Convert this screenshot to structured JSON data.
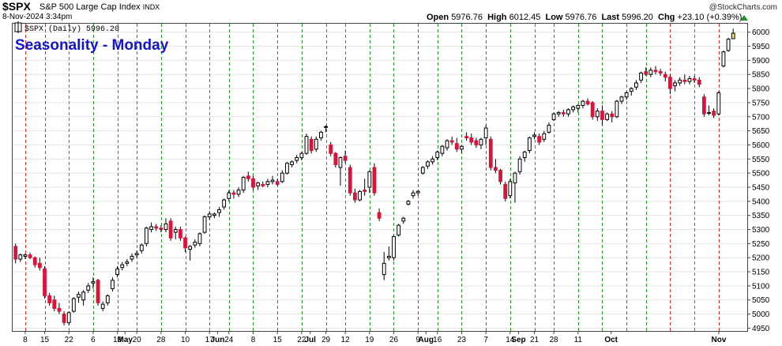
{
  "header": {
    "ticker": "$SPX",
    "name": "S&P 500 Large Cap Index",
    "exchange": "INDX",
    "date": "8-Nov-2024 3:34pm",
    "open_label": "Open",
    "open": "5976.76",
    "high_label": "High",
    "high": "6012.45",
    "low_label": "Low",
    "low": "5976.76",
    "last_label": "Last",
    "last": "5996.20",
    "chg_label": "Chg",
    "chg": "+23.10 (+0.39%)",
    "credit": "@StockCharts.com"
  },
  "legend": {
    "text": "$SPX (Daily) 5996.20"
  },
  "chart_data": {
    "type": "candlestick",
    "title": "Seasonality - Monday",
    "ylim": [
      4940,
      6030
    ],
    "y_ticks": [
      4950,
      5000,
      5050,
      5100,
      5150,
      5200,
      5250,
      5300,
      5350,
      5400,
      5450,
      5500,
      5550,
      5600,
      5650,
      5700,
      5750,
      5800,
      5850,
      5900,
      5950,
      6000
    ],
    "x_labels": [
      "8",
      "15",
      "22",
      "May",
      "6",
      "13",
      "20",
      "28",
      "Jun",
      "10",
      "17",
      "24",
      "Jul",
      "8",
      "15",
      "22",
      "29",
      "Aug",
      "12",
      "19",
      "26",
      "Sep",
      "9",
      "16",
      "23",
      "Oct",
      "7",
      "14",
      "21",
      "28",
      "Nov",
      "11"
    ],
    "x_label_bold": [
      "May",
      "Jun",
      "Jul",
      "Aug",
      "Sep",
      "Oct",
      "Nov"
    ],
    "grid": true,
    "vertical_lines": "Mondays; red = Monday closed down, green = Monday closed up",
    "colors": {
      "up": "#ffffff",
      "down": "#d6143c",
      "outline": "#000000",
      "red_line": "#d23030",
      "green_line": "#2a9a2a",
      "title": "#1515c8"
    },
    "monday_lines": [
      {
        "date": "Apr 8",
        "color": "red"
      },
      {
        "date": "Apr 15",
        "color": "red"
      },
      {
        "date": "Apr 22",
        "color": "green"
      },
      {
        "date": "Apr 29",
        "color": "green"
      },
      {
        "date": "May 6",
        "color": "green"
      },
      {
        "date": "May 13",
        "color": "red"
      },
      {
        "date": "May 20",
        "color": "green"
      },
      {
        "date": "May 27",
        "color": "green"
      },
      {
        "date": "Jun 3",
        "color": "green"
      },
      {
        "date": "Jun 10",
        "color": "green"
      },
      {
        "date": "Jun 17",
        "color": "green"
      },
      {
        "date": "Jun 24",
        "color": "red"
      },
      {
        "date": "Jul 1",
        "color": "green"
      },
      {
        "date": "Jul 8",
        "color": "green"
      },
      {
        "date": "Jul 15",
        "color": "green"
      },
      {
        "date": "Jul 22",
        "color": "green"
      },
      {
        "date": "Jul 29",
        "color": "green"
      },
      {
        "date": "Aug 5",
        "color": "red"
      },
      {
        "date": "Aug 12",
        "color": "green"
      },
      {
        "date": "Aug 19",
        "color": "green"
      },
      {
        "date": "Aug 26",
        "color": "red"
      },
      {
        "date": "Sep 2",
        "color": "green"
      },
      {
        "date": "Sep 9",
        "color": "green"
      },
      {
        "date": "Sep 16",
        "color": "green"
      },
      {
        "date": "Sep 23",
        "color": "green"
      },
      {
        "date": "Sep 30",
        "color": "green"
      },
      {
        "date": "Oct 7",
        "color": "red"
      },
      {
        "date": "Oct 14",
        "color": "green"
      },
      {
        "date": "Oct 21",
        "color": "red"
      },
      {
        "date": "Oct 28",
        "color": "green"
      },
      {
        "date": "Nov 4",
        "color": "red"
      }
    ],
    "candles": [
      {
        "o": 5240,
        "h": 5250,
        "l": 5180,
        "c": 5195
      },
      {
        "o": 5195,
        "h": 5215,
        "l": 5185,
        "c": 5210
      },
      {
        "o": 5205,
        "h": 5215,
        "l": 5195,
        "c": 5210
      },
      {
        "o": 5210,
        "h": 5218,
        "l": 5195,
        "c": 5200
      },
      {
        "o": 5200,
        "h": 5205,
        "l": 5165,
        "c": 5175
      },
      {
        "o": 5180,
        "h": 5200,
        "l": 5155,
        "c": 5165
      },
      {
        "o": 5160,
        "h": 5170,
        "l": 5055,
        "c": 5065
      },
      {
        "o": 5065,
        "h": 5075,
        "l": 5030,
        "c": 5040
      },
      {
        "o": 5050,
        "h": 5065,
        "l": 5010,
        "c": 5020
      },
      {
        "o": 5020,
        "h": 5040,
        "l": 5000,
        "c": 5010
      },
      {
        "o": 5000,
        "h": 5010,
        "l": 4960,
        "c": 4970
      },
      {
        "o": 4970,
        "h": 5010,
        "l": 4960,
        "c": 5005
      },
      {
        "o": 5010,
        "h": 5060,
        "l": 5005,
        "c": 5055
      },
      {
        "o": 5060,
        "h": 5080,
        "l": 5040,
        "c": 5070
      },
      {
        "o": 5050,
        "h": 5085,
        "l": 5030,
        "c": 5078
      },
      {
        "o": 5085,
        "h": 5110,
        "l": 5075,
        "c": 5100
      },
      {
        "o": 5110,
        "h": 5130,
        "l": 5090,
        "c": 5115
      },
      {
        "o": 5120,
        "h": 5125,
        "l": 5030,
        "c": 5040
      },
      {
        "o": 5020,
        "h": 5045,
        "l": 5010,
        "c": 5035
      },
      {
        "o": 5040,
        "h": 5070,
        "l": 5030,
        "c": 5065
      },
      {
        "o": 5090,
        "h": 5130,
        "l": 5080,
        "c": 5120
      },
      {
        "o": 5140,
        "h": 5170,
        "l": 5130,
        "c": 5160
      },
      {
        "o": 5165,
        "h": 5185,
        "l": 5155,
        "c": 5175
      },
      {
        "o": 5180,
        "h": 5195,
        "l": 5170,
        "c": 5185
      },
      {
        "o": 5195,
        "h": 5215,
        "l": 5185,
        "c": 5205
      },
      {
        "o": 5210,
        "h": 5225,
        "l": 5200,
        "c": 5215
      },
      {
        "o": 5225,
        "h": 5250,
        "l": 5215,
        "c": 5245
      },
      {
        "o": 5250,
        "h": 5310,
        "l": 5240,
        "c": 5305
      },
      {
        "o": 5300,
        "h": 5325,
        "l": 5290,
        "c": 5310
      },
      {
        "o": 5310,
        "h": 5320,
        "l": 5295,
        "c": 5305
      },
      {
        "o": 5305,
        "h": 5315,
        "l": 5290,
        "c": 5300
      },
      {
        "o": 5300,
        "h": 5340,
        "l": 5290,
        "c": 5320
      },
      {
        "o": 5330,
        "h": 5340,
        "l": 5260,
        "c": 5270
      },
      {
        "o": 5290,
        "h": 5310,
        "l": 5265,
        "c": 5300
      },
      {
        "o": 5300,
        "h": 5310,
        "l": 5260,
        "c": 5270
      },
      {
        "o": 5270,
        "h": 5275,
        "l": 5220,
        "c": 5235
      },
      {
        "o": 5230,
        "h": 5245,
        "l": 5190,
        "c": 5240
      },
      {
        "o": 5245,
        "h": 5265,
        "l": 5235,
        "c": 5255
      },
      {
        "o": 5250,
        "h": 5290,
        "l": 5240,
        "c": 5285
      },
      {
        "o": 5290,
        "h": 5350,
        "l": 5285,
        "c": 5345
      },
      {
        "o": 5345,
        "h": 5365,
        "l": 5335,
        "c": 5355
      },
      {
        "o": 5350,
        "h": 5360,
        "l": 5340,
        "c": 5355
      },
      {
        "o": 5360,
        "h": 5380,
        "l": 5345,
        "c": 5370
      },
      {
        "o": 5380,
        "h": 5410,
        "l": 5370,
        "c": 5405
      },
      {
        "o": 5410,
        "h": 5440,
        "l": 5400,
        "c": 5430
      },
      {
        "o": 5430,
        "h": 5440,
        "l": 5410,
        "c": 5425
      },
      {
        "o": 5425,
        "h": 5450,
        "l": 5415,
        "c": 5440
      },
      {
        "o": 5440,
        "h": 5490,
        "l": 5430,
        "c": 5485
      },
      {
        "o": 5490,
        "h": 5505,
        "l": 5470,
        "c": 5480
      },
      {
        "o": 5480,
        "h": 5490,
        "l": 5440,
        "c": 5450
      },
      {
        "o": 5455,
        "h": 5470,
        "l": 5440,
        "c": 5465
      },
      {
        "o": 5460,
        "h": 5470,
        "l": 5450,
        "c": 5455
      },
      {
        "o": 5460,
        "h": 5480,
        "l": 5450,
        "c": 5470
      },
      {
        "o": 5470,
        "h": 5490,
        "l": 5460,
        "c": 5475
      },
      {
        "o": 5470,
        "h": 5480,
        "l": 5455,
        "c": 5460
      },
      {
        "o": 5470,
        "h": 5510,
        "l": 5465,
        "c": 5500
      },
      {
        "o": 5500,
        "h": 5540,
        "l": 5495,
        "c": 5535
      },
      {
        "o": 5530,
        "h": 5545,
        "l": 5520,
        "c": 5540
      },
      {
        "o": 5545,
        "h": 5565,
        "l": 5535,
        "c": 5555
      },
      {
        "o": 5555,
        "h": 5575,
        "l": 5545,
        "c": 5570
      },
      {
        "o": 5570,
        "h": 5640,
        "l": 5565,
        "c": 5630
      },
      {
        "o": 5620,
        "h": 5630,
        "l": 5570,
        "c": 5580
      },
      {
        "o": 5585,
        "h": 5630,
        "l": 5575,
        "c": 5620
      },
      {
        "o": 5625,
        "h": 5650,
        "l": 5615,
        "c": 5645
      },
      {
        "o": 5665,
        "h": 5670,
        "l": 5645,
        "c": 5665
      },
      {
        "o": 5600,
        "h": 5610,
        "l": 5560,
        "c": 5570
      },
      {
        "o": 5570,
        "h": 5575,
        "l": 5520,
        "c": 5530
      },
      {
        "o": 5520,
        "h": 5560,
        "l": 5455,
        "c": 5555
      },
      {
        "o": 5560,
        "h": 5580,
        "l": 5535,
        "c": 5545
      },
      {
        "o": 5520,
        "h": 5530,
        "l": 5420,
        "c": 5430
      },
      {
        "o": 5430,
        "h": 5445,
        "l": 5395,
        "c": 5405
      },
      {
        "o": 5405,
        "h": 5440,
        "l": 5400,
        "c": 5435
      },
      {
        "o": 5440,
        "h": 5480,
        "l": 5420,
        "c": 5435
      },
      {
        "o": 5450,
        "h": 5510,
        "l": 5430,
        "c": 5505
      },
      {
        "o": 5520,
        "h": 5535,
        "l": 5420,
        "c": 5430
      },
      {
        "o": 5360,
        "h": 5375,
        "l": 5330,
        "c": 5340
      },
      {
        "o": 5140,
        "h": 5220,
        "l": 5120,
        "c": 5180
      },
      {
        "o": 5200,
        "h": 5240,
        "l": 5190,
        "c": 5205
      },
      {
        "o": 5200,
        "h": 5280,
        "l": 5190,
        "c": 5275
      },
      {
        "o": 5280,
        "h": 5320,
        "l": 5275,
        "c": 5315
      },
      {
        "o": 5330,
        "h": 5345,
        "l": 5320,
        "c": 5340
      },
      {
        "o": 5390,
        "h": 5405,
        "l": 5385,
        "c": 5400
      },
      {
        "o": 5420,
        "h": 5440,
        "l": 5410,
        "c": 5430
      },
      {
        "o": 5430,
        "h": 5440,
        "l": 5420,
        "c": 5435
      },
      {
        "o": 5500,
        "h": 5525,
        "l": 5495,
        "c": 5520
      },
      {
        "o": 5525,
        "h": 5545,
        "l": 5515,
        "c": 5540
      },
      {
        "o": 5540,
        "h": 5560,
        "l": 5530,
        "c": 5550
      },
      {
        "o": 5555,
        "h": 5580,
        "l": 5545,
        "c": 5575
      },
      {
        "o": 5570,
        "h": 5600,
        "l": 5560,
        "c": 5595
      },
      {
        "o": 5590,
        "h": 5620,
        "l": 5580,
        "c": 5615
      },
      {
        "o": 5615,
        "h": 5630,
        "l": 5600,
        "c": 5610
      },
      {
        "o": 5605,
        "h": 5625,
        "l": 5575,
        "c": 5585
      },
      {
        "o": 5585,
        "h": 5600,
        "l": 5570,
        "c": 5595
      },
      {
        "o": 5630,
        "h": 5645,
        "l": 5615,
        "c": 5625
      },
      {
        "o": 5625,
        "h": 5640,
        "l": 5600,
        "c": 5610
      },
      {
        "o": 5615,
        "h": 5625,
        "l": 5590,
        "c": 5600
      },
      {
        "o": 5600,
        "h": 5625,
        "l": 5585,
        "c": 5620
      },
      {
        "o": 5625,
        "h": 5670,
        "l": 5600,
        "c": 5660
      },
      {
        "o": 5620,
        "h": 5630,
        "l": 5510,
        "c": 5520
      },
      {
        "o": 5520,
        "h": 5550,
        "l": 5500,
        "c": 5510
      },
      {
        "o": 5510,
        "h": 5515,
        "l": 5460,
        "c": 5470
      },
      {
        "o": 5460,
        "h": 5470,
        "l": 5400,
        "c": 5410
      },
      {
        "o": 5420,
        "h": 5480,
        "l": 5410,
        "c": 5470
      },
      {
        "o": 5465,
        "h": 5505,
        "l": 5395,
        "c": 5500
      },
      {
        "o": 5505,
        "h": 5560,
        "l": 5495,
        "c": 5550
      },
      {
        "o": 5555,
        "h": 5580,
        "l": 5540,
        "c": 5575
      },
      {
        "o": 5580,
        "h": 5630,
        "l": 5570,
        "c": 5625
      },
      {
        "o": 5630,
        "h": 5645,
        "l": 5620,
        "c": 5635
      },
      {
        "o": 5630,
        "h": 5640,
        "l": 5600,
        "c": 5610
      },
      {
        "o": 5620,
        "h": 5650,
        "l": 5610,
        "c": 5640
      },
      {
        "o": 5645,
        "h": 5680,
        "l": 5640,
        "c": 5670
      },
      {
        "o": 5690,
        "h": 5715,
        "l": 5685,
        "c": 5710
      },
      {
        "o": 5710,
        "h": 5720,
        "l": 5700,
        "c": 5715
      },
      {
        "o": 5715,
        "h": 5725,
        "l": 5700,
        "c": 5710
      },
      {
        "o": 5710,
        "h": 5730,
        "l": 5700,
        "c": 5725
      },
      {
        "o": 5725,
        "h": 5740,
        "l": 5715,
        "c": 5735
      },
      {
        "o": 5730,
        "h": 5745,
        "l": 5715,
        "c": 5740
      },
      {
        "o": 5740,
        "h": 5760,
        "l": 5730,
        "c": 5755
      },
      {
        "o": 5755,
        "h": 5765,
        "l": 5740,
        "c": 5745
      },
      {
        "o": 5750,
        "h": 5755,
        "l": 5690,
        "c": 5700
      },
      {
        "o": 5700,
        "h": 5730,
        "l": 5685,
        "c": 5720
      },
      {
        "o": 5720,
        "h": 5740,
        "l": 5670,
        "c": 5690
      },
      {
        "o": 5690,
        "h": 5715,
        "l": 5685,
        "c": 5710
      },
      {
        "o": 5710,
        "h": 5720,
        "l": 5680,
        "c": 5700
      },
      {
        "o": 5700,
        "h": 5760,
        "l": 5695,
        "c": 5755
      },
      {
        "o": 5755,
        "h": 5775,
        "l": 5745,
        "c": 5770
      },
      {
        "o": 5770,
        "h": 5790,
        "l": 5760,
        "c": 5785
      },
      {
        "o": 5790,
        "h": 5805,
        "l": 5775,
        "c": 5800
      },
      {
        "o": 5805,
        "h": 5830,
        "l": 5795,
        "c": 5820
      },
      {
        "o": 5830,
        "h": 5860,
        "l": 5820,
        "c": 5855
      },
      {
        "o": 5860,
        "h": 5875,
        "l": 5845,
        "c": 5850
      },
      {
        "o": 5850,
        "h": 5875,
        "l": 5840,
        "c": 5865
      },
      {
        "o": 5865,
        "h": 5880,
        "l": 5850,
        "c": 5860
      },
      {
        "o": 5860,
        "h": 5870,
        "l": 5845,
        "c": 5855
      },
      {
        "o": 5850,
        "h": 5860,
        "l": 5825,
        "c": 5840
      },
      {
        "o": 5840,
        "h": 5850,
        "l": 5780,
        "c": 5800
      },
      {
        "o": 5810,
        "h": 5830,
        "l": 5790,
        "c": 5820
      },
      {
        "o": 5820,
        "h": 5840,
        "l": 5810,
        "c": 5830
      },
      {
        "o": 5830,
        "h": 5850,
        "l": 5815,
        "c": 5825
      },
      {
        "o": 5825,
        "h": 5845,
        "l": 5815,
        "c": 5835
      },
      {
        "o": 5835,
        "h": 5845,
        "l": 5820,
        "c": 5830
      },
      {
        "o": 5830,
        "h": 5840,
        "l": 5805,
        "c": 5815
      },
      {
        "o": 5770,
        "h": 5780,
        "l": 5700,
        "c": 5710
      },
      {
        "o": 5715,
        "h": 5740,
        "l": 5705,
        "c": 5715
      },
      {
        "o": 5720,
        "h": 5730,
        "l": 5695,
        "c": 5705
      },
      {
        "o": 5710,
        "h": 5790,
        "l": 5705,
        "c": 5785
      },
      {
        "o": 5880,
        "h": 5935,
        "l": 5875,
        "c": 5930
      },
      {
        "o": 5935,
        "h": 5980,
        "l": 5930,
        "c": 5975
      },
      {
        "o": 5976.76,
        "h": 6012.45,
        "l": 5976.76,
        "c": 5996.2
      }
    ]
  }
}
